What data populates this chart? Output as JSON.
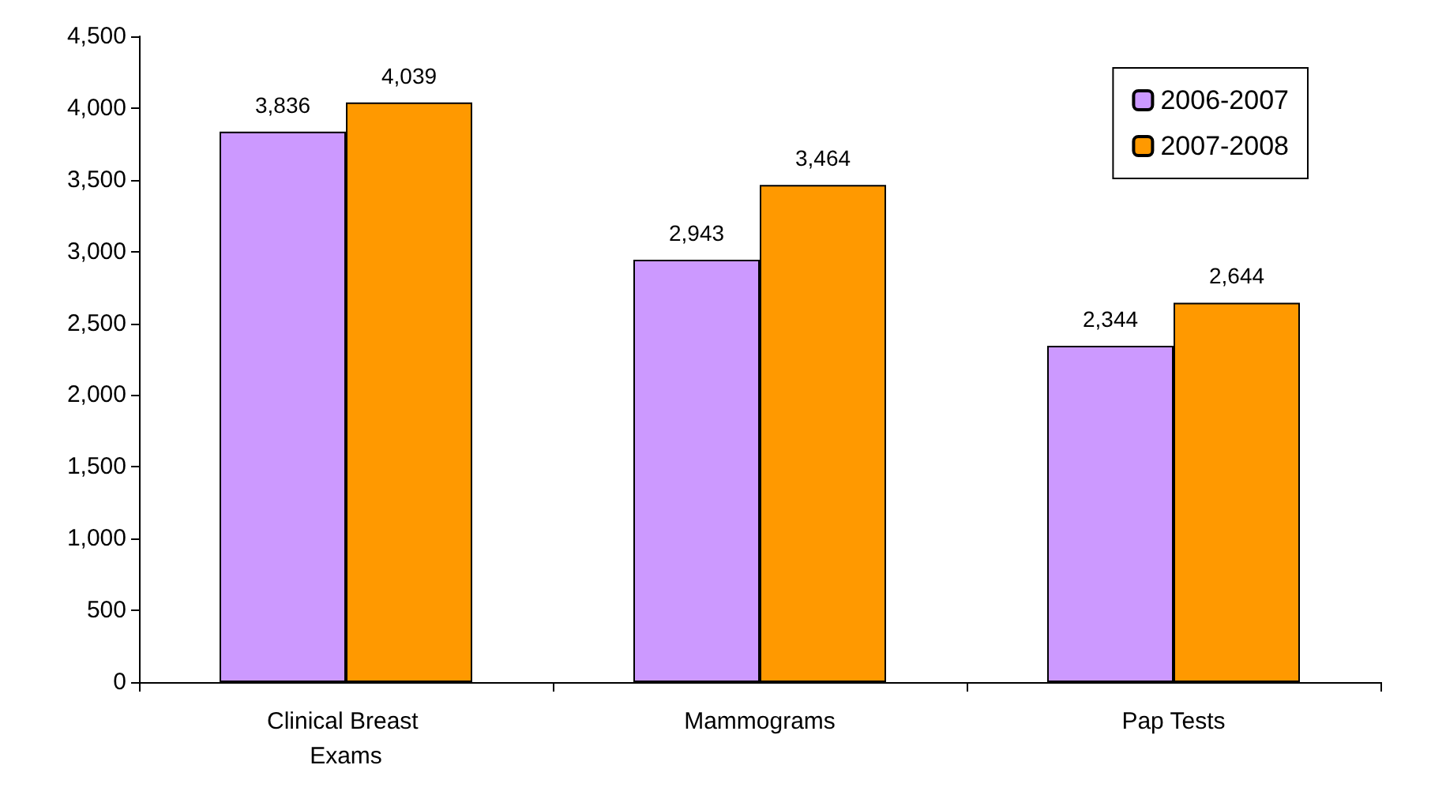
{
  "chart_data": {
    "type": "bar",
    "categories": [
      "Clinical Breast Exams",
      "Mammograms",
      "Pap Tests"
    ],
    "series": [
      {
        "name": "2006-2007",
        "color": "#cc99ff",
        "values": [
          3836,
          2943,
          2344
        ],
        "value_labels": [
          "3,836",
          "2,943",
          "2,344"
        ]
      },
      {
        "name": "2007-2008",
        "color": "#ff9900",
        "values": [
          4039,
          3464,
          2644
        ],
        "value_labels": [
          "4,039",
          "3,464",
          "2,644"
        ]
      }
    ],
    "ylim": [
      0,
      4500
    ],
    "yticks": [
      0,
      500,
      {
        "value": 1000,
        "label": "1,000"
      },
      {
        "value": 1500,
        "label": "1,500"
      },
      {
        "value": 2000,
        "label": "2,000"
      },
      {
        "value": 2500,
        "label": "2,500"
      },
      {
        "value": 3000,
        "label": "3,000"
      },
      {
        "value": 3500,
        "label": "3,500"
      },
      {
        "value": 4000,
        "label": "4,000"
      },
      {
        "value": 4500,
        "label": "4,500"
      }
    ],
    "grid": false,
    "legend": "top right"
  }
}
